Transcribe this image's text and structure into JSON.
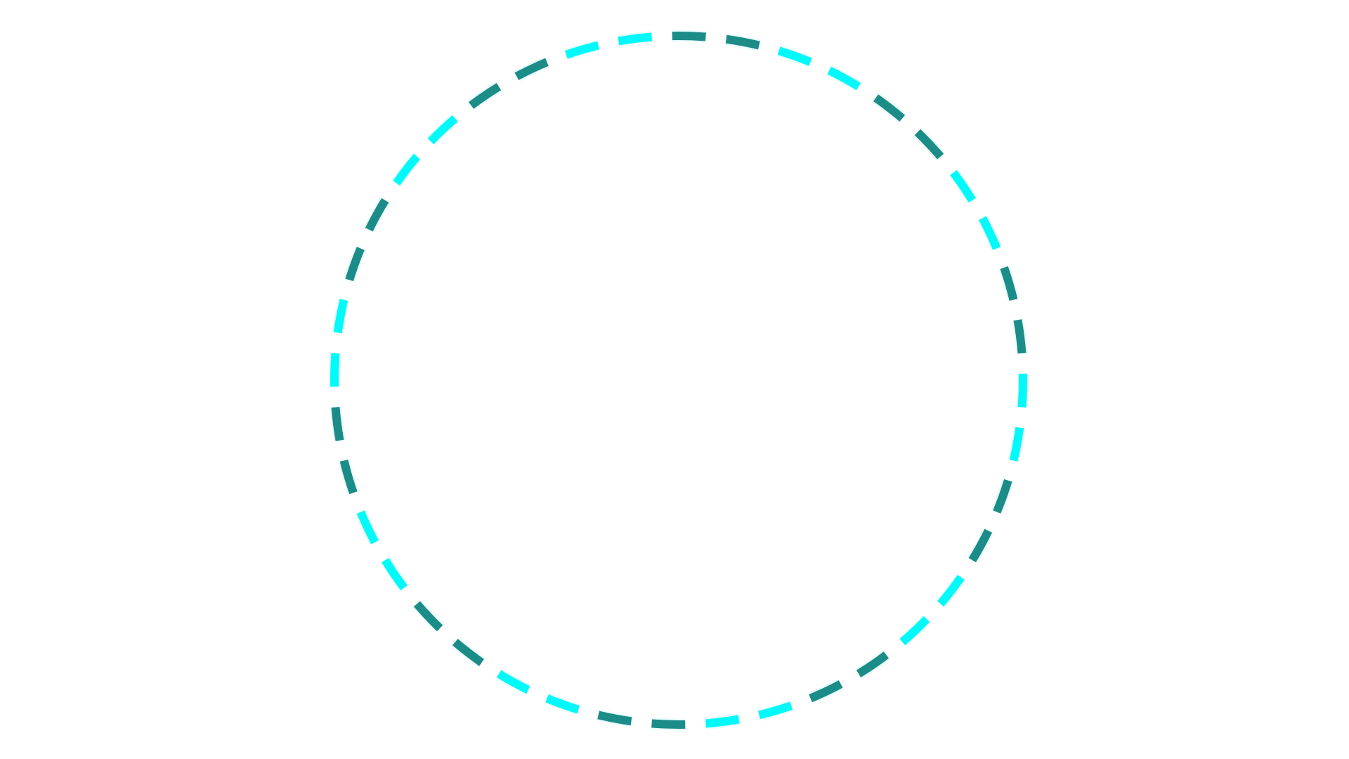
{
  "loader": {
    "name": "dashed-ring-spinner",
    "segment_count": 40,
    "pattern": [
      "dark",
      "dark",
      "light",
      "light"
    ],
    "start_angle_deg": -90,
    "fill_fraction": 0.62,
    "colors": {
      "background": "#ffffff",
      "dark": "#1b8c88",
      "light": "#00fafa",
      "halo": "#bff6f6"
    }
  }
}
